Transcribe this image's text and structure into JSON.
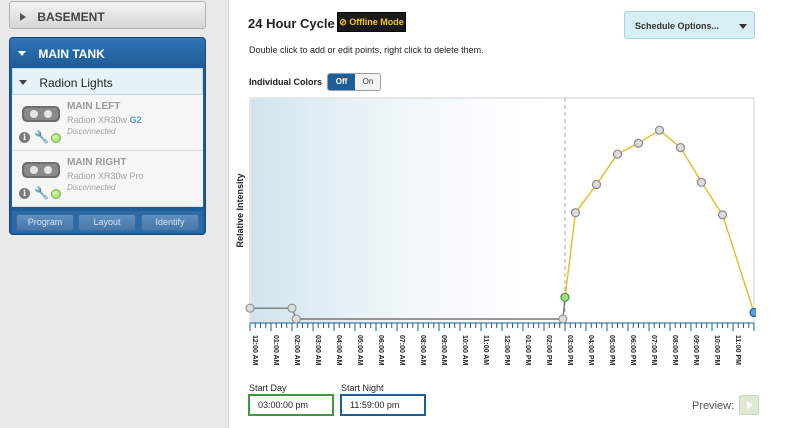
{
  "sidebar": {
    "basement_label": "BASEMENT",
    "tank": {
      "title": "MAIN TANK",
      "group_label": "Radion Lights",
      "devices": [
        {
          "name": "MAIN LEFT",
          "model": "Radion XR30w",
          "model_suffix": "G2",
          "status": "Disconnected",
          "status_color": "#8fd45a"
        },
        {
          "name": "MAIN RIGHT",
          "model": "Radion XR30w Pro",
          "model_suffix": "",
          "status": "Disconnected",
          "status_color": "#8fd45a"
        }
      ],
      "buttons": {
        "program": "Program",
        "layout": "Layout",
        "identify": "Identify"
      }
    }
  },
  "header": {
    "title": "24 Hour Cycle",
    "offline_badge": "Offline Mode",
    "instructions": "Double click to add or edit points, right click to delete them.",
    "schedule_options": "Schedule Options..."
  },
  "individual_colors": {
    "label": "Individual Colors",
    "off": "Off",
    "on": "On",
    "selected": "Off"
  },
  "chart_data": {
    "type": "line",
    "ylabel": "Relative Intensity",
    "x_ticks": [
      "12:00 AM",
      "01:00 AM",
      "02:00 AM",
      "03:00 AM",
      "04:00 AM",
      "05:00 AM",
      "06:00 AM",
      "07:00 AM",
      "08:00 AM",
      "09:00 AM",
      "10:00 AM",
      "11:00 AM",
      "12:00 PM",
      "01:00 PM",
      "02:00 PM",
      "03:00 PM",
      "04:00 PM",
      "05:00 PM",
      "06:00 PM",
      "07:00 PM",
      "08:00 PM",
      "09:00 PM",
      "10:00 PM",
      "11:00 PM",
      "12:00 AM"
    ],
    "xlim": [
      0,
      24
    ],
    "ylim": [
      0,
      100
    ],
    "night_series": {
      "color": "#777777",
      "points": [
        [
          0,
          5
        ],
        [
          2,
          5
        ],
        [
          2.2,
          0
        ],
        [
          14.9,
          0
        ],
        [
          15,
          10
        ]
      ]
    },
    "day_series": {
      "color": "#f0b81c",
      "points": [
        [
          15,
          10
        ],
        [
          15.5,
          49
        ],
        [
          16.5,
          62
        ],
        [
          17.5,
          76
        ],
        [
          18.5,
          81
        ],
        [
          19.5,
          87
        ],
        [
          20.5,
          79
        ],
        [
          21.5,
          63
        ],
        [
          22.5,
          48
        ],
        [
          24,
          3
        ]
      ]
    },
    "day_start": 15,
    "night_start": 23.98,
    "start_marker_color": "#3f9a3f",
    "end_marker_color": "#1f5d99",
    "night_shade_color": "#cfe3ee"
  },
  "schedule": {
    "start_day_label": "Start Day",
    "start_day_value": "03:00:00 pm",
    "start_night_label": "Start Night",
    "start_night_value": "11:59:00 pm",
    "preview_label": "Preview:"
  }
}
